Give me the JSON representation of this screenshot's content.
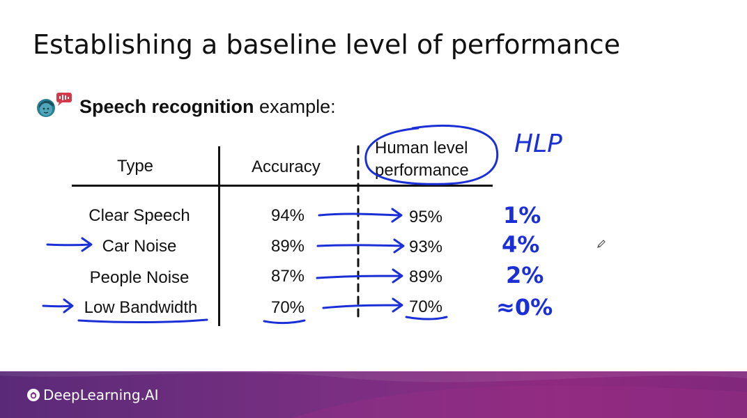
{
  "slide": {
    "title": "Establishing a baseline level of performance",
    "subtitle_bold": "Speech recognition",
    "subtitle_rest": " example:"
  },
  "table": {
    "headers": {
      "type": "Type",
      "accuracy": "Accuracy",
      "hlp_line1": "Human level",
      "hlp_line2": "performance"
    },
    "rows": [
      {
        "type": "Clear Speech",
        "accuracy": "94%",
        "hlp": "95%"
      },
      {
        "type": "Car Noise",
        "accuracy": "89%",
        "hlp": "93%"
      },
      {
        "type": "People Noise",
        "accuracy": "87%",
        "hlp": "89%"
      },
      {
        "type": "Low Bandwidth",
        "accuracy": "70%",
        "hlp": "70%"
      }
    ]
  },
  "annotations": {
    "hlp_label": "HLP",
    "gaps": [
      "1%",
      "4%",
      "2%",
      "≈0%"
    ]
  },
  "footer": {
    "brand": "DeepLearning.AI"
  },
  "icons": {
    "speaker": "speech-person-icon",
    "brand_logo": "deeplearning-logo-icon",
    "cursor": "pencil-cursor-icon"
  }
}
